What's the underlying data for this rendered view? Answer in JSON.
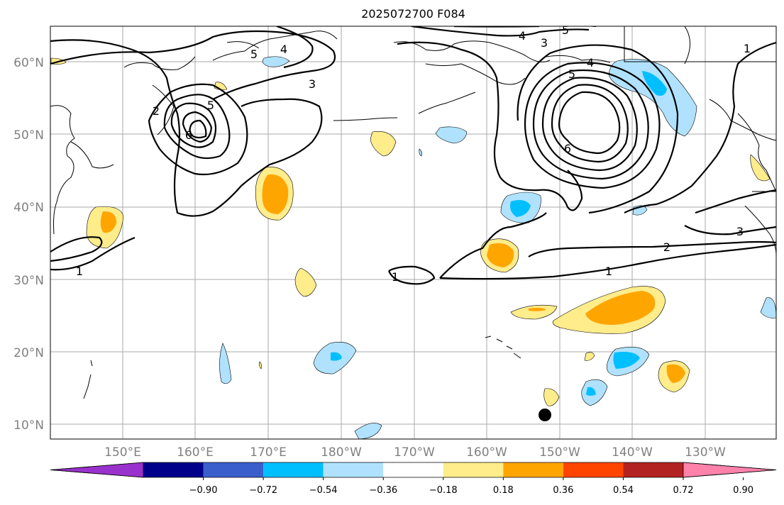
{
  "title": "2025072700 F084",
  "lat_labels": [
    "60°N",
    "50°N",
    "40°N",
    "30°N",
    "20°N",
    "10°N"
  ],
  "lon_labels": [
    "150°E",
    "160°E",
    "170°E",
    "180°W",
    "170°W",
    "160°W",
    "150°W",
    "140°W",
    "130°W"
  ],
  "contour_labels": [
    "1",
    "1",
    "1",
    "1",
    "2",
    "2",
    "3",
    "3",
    "3",
    "4",
    "4",
    "4",
    "5",
    "5",
    "5",
    "5",
    "6",
    "6"
  ],
  "colorbar": {
    "ticks": [
      "−0.90",
      "−0.72",
      "−0.54",
      "−0.36",
      "−0.18",
      "0.18",
      "0.36",
      "0.54",
      "0.72",
      "0.90"
    ],
    "colors": [
      "#9932cc",
      "#00008b",
      "#3a5fcd",
      "#00bfff",
      "#b0e2ff",
      "#ffffff",
      "#ffec8b",
      "#ffa500",
      "#ff4500",
      "#b22222",
      "#ff82ab"
    ]
  },
  "marker": "black-dot"
}
